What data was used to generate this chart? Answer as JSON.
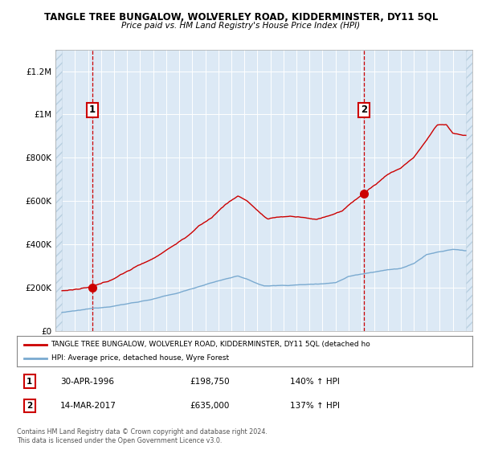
{
  "title": "TANGLE TREE BUNGALOW, WOLVERLEY ROAD, KIDDERMINSTER, DY11 5QL",
  "subtitle": "Price paid vs. HM Land Registry's House Price Index (HPI)",
  "bg_color": "#dce9f5",
  "sale1_x": 1996.33,
  "sale1_y": 198750,
  "sale2_x": 2017.2,
  "sale2_y": 635000,
  "xmin": 1993.5,
  "xmax": 2025.5,
  "ymin": 0,
  "ymax": 1300000,
  "yticks": [
    0,
    200000,
    400000,
    600000,
    800000,
    1000000,
    1200000
  ],
  "ytick_labels": [
    "£0",
    "£200K",
    "£400K",
    "£600K",
    "£800K",
    "£1M",
    "£1.2M"
  ],
  "legend_line1": "TANGLE TREE BUNGALOW, WOLVERLEY ROAD, KIDDERMINSTER, DY11 5QL (detached ho",
  "legend_line2": "HPI: Average price, detached house, Wyre Forest",
  "table_row1": [
    "1",
    "30-APR-1996",
    "£198,750",
    "140% ↑ HPI"
  ],
  "table_row2": [
    "2",
    "14-MAR-2017",
    "£635,000",
    "137% ↑ HPI"
  ],
  "footnote": "Contains HM Land Registry data © Crown copyright and database right 2024.\nThis data is licensed under the Open Government Licence v3.0.",
  "red_color": "#cc0000",
  "blue_color": "#7aaad0",
  "hatch_edge_color": "#b8cfe0"
}
